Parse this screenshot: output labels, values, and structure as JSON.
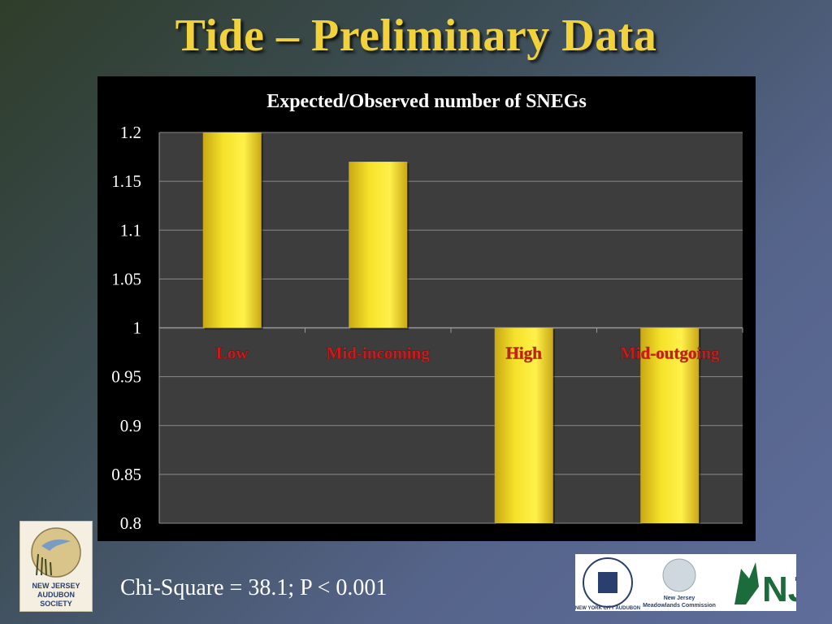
{
  "slide": {
    "title": "Tide – Preliminary Data",
    "stat_text": "Chi-Square = 38.1; P < 0.001"
  },
  "logos": {
    "audubon": {
      "lines": [
        "NEW JERSEY",
        "AUDUBON",
        "SOCIETY"
      ]
    },
    "nyc_audubon": "NEW YORK CITY AUDUBON",
    "meadowlands": [
      "New Jersey",
      "Meadowlands Commission"
    ],
    "nj_letters": "NJ"
  },
  "colors": {
    "title": "#f2d23a",
    "bar": "#f6e22a",
    "category_label": "#cc1a1a",
    "plot_background": "#3d3d3d",
    "gridline": "#8a8a8a"
  },
  "chart_data": {
    "type": "bar",
    "title": "Expected/Observed number of SNEGs",
    "categories": [
      "Low",
      "Mid-incoming",
      "High",
      "Mid-outgoing"
    ],
    "values": [
      1.2,
      1.17,
      0.8,
      0.8
    ],
    "baseline": 1,
    "ylim": [
      0.8,
      1.2
    ],
    "yticks": [
      "0.8",
      "0.85",
      "0.9",
      "0.95",
      "1",
      "1.05",
      "1.1",
      "1.15",
      "1.2"
    ],
    "grid": true,
    "legend": "none"
  }
}
